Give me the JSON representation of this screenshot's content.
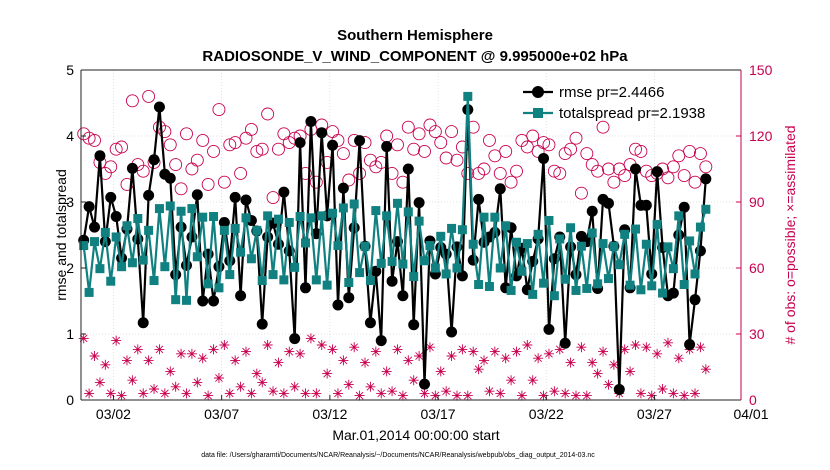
{
  "chart_data": {
    "type": "line",
    "title": "Southern Hemisphere",
    "subtitle": "RADIOSONDE_V_WIND_COMPONENT @ 9.995000e+02 hPa",
    "xlabel": "Mar.01,2014 00:00:00 start",
    "ylabel": "rmse and totalspread",
    "ylabel_right": "# of obs: o=possible; ×=assimilated",
    "footnote": "data file: /Users/gharamti/Documents/NCAR/Reanalysis/~/Documents/NCAR/Reanalysis/webpub/obs_diag_output_2014-03.nc",
    "xlim": [
      0.5,
      31.0
    ],
    "ylim": [
      0,
      5
    ],
    "ylim_right": [
      0,
      150
    ],
    "x_ticks": [
      {
        "value": 2,
        "label": "03/02"
      },
      {
        "value": 7,
        "label": "03/07"
      },
      {
        "value": 12,
        "label": "03/12"
      },
      {
        "value": 17,
        "label": "03/17"
      },
      {
        "value": 22,
        "label": "03/22"
      },
      {
        "value": 27,
        "label": "03/27"
      },
      {
        "value": 32,
        "label": "04/01"
      }
    ],
    "y_ticks": [
      "0",
      "1",
      "2",
      "3",
      "4",
      "5"
    ],
    "y_ticks_right": [
      "0",
      "30",
      "60",
      "90",
      "120",
      "150"
    ],
    "x_start": 0.625,
    "x_step": 0.25,
    "series": [
      {
        "name": "rmse",
        "label": "rmse pr=2.4466",
        "color": "#000000",
        "marker": "circle",
        "values": [
          2.42,
          2.93,
          2.62,
          3.7,
          2.4,
          3.07,
          2.78,
          2.15,
          2.59,
          3.51,
          2.44,
          1.17,
          3.1,
          3.64,
          4.44,
          3.42,
          3.36,
          1.9,
          2.62,
          2.04,
          2.47,
          3.11,
          1.5,
          2.21,
          1.5,
          2.02,
          2.69,
          2.11,
          3.07,
          1.58,
          3.03,
          2.72,
          2.56,
          1.15,
          2.47,
          2.68,
          2.36,
          3.15,
          2.26,
          0.93,
          3.9,
          1.7,
          4.22,
          2.52,
          4.05,
          2.79,
          3.86,
          1.44,
          3.21,
          1.55,
          2.61,
          3.93,
          2.33,
          1.17,
          1.95,
          0.9,
          3.84,
          1.8,
          2.4,
          1.58,
          3.5,
          1.14,
          2.99,
          0.24,
          2.41,
          1.91,
          2.31,
          2.21,
          1.03,
          2.32,
          1.88,
          4.4,
          2.12,
          3.04,
          2.39,
          2.47,
          2.54,
          3.2,
          1.7,
          2.61,
          1.88,
          2.3,
          1.67,
          2.1,
          2.44,
          3.66,
          1.07,
          2.14,
          2.47,
          0.86,
          2.32,
          1.9,
          2.48,
          2.4,
          2.86,
          1.69,
          3.04,
          2.98,
          2.33,
          0.16,
          2.58,
          1.7,
          3.5,
          2.95,
          2.95,
          1.91,
          3.46,
          2.31,
          1.58,
          1.62,
          2.5,
          2.92,
          0.84,
          1.52,
          2.26,
          3.35
        ]
      },
      {
        "name": "totalspread",
        "label": "totalspread pr=2.1938",
        "color": "#108080",
        "marker": "square",
        "values": [
          2.34,
          1.63,
          2.4,
          1.99,
          2.54,
          1.8,
          2.47,
          2.02,
          2.64,
          2.08,
          2.75,
          2.12,
          2.57,
          1.81,
          2.9,
          2.02,
          2.94,
          1.52,
          2.86,
          1.51,
          2.9,
          2.17,
          2.77,
          1.76,
          2.78,
          1.7,
          2.57,
          1.9,
          2.6,
          2.24,
          2.76,
          2.14,
          2.57,
          1.81,
          2.79,
          1.9,
          2.74,
          1.82,
          2.69,
          2.01,
          2.78,
          2.38,
          2.76,
          1.82,
          2.79,
          1.74,
          2.83,
          2.34,
          2.91,
          1.78,
          2.97,
          1.93,
          2.33,
          1.81,
          2.87,
          2.07,
          2.79,
          2.1,
          2.98,
          2.06,
          2.85,
          1.87,
          2.71,
          2.11,
          2.34,
          2.0,
          2.48,
          1.91,
          2.6,
          2.0,
          2.58,
          4.6,
          2.36,
          1.75,
          2.77,
          1.72,
          2.77,
          2.0,
          2.64,
          1.66,
          2.39,
          1.95,
          2.37,
          1.6,
          2.51,
          1.77,
          2.72,
          1.58,
          2.44,
          1.83,
          2.61,
          1.66,
          2.33,
          1.69,
          2.53,
          1.76,
          2.37,
          1.84,
          2.33,
          2.05,
          2.51,
          1.74,
          2.59,
          1.67,
          2.36,
          1.73,
          2.66,
          1.62,
          2.32,
          1.99,
          2.79,
          1.75,
          2.41,
          1.91,
          2.62,
          2.89
        ]
      },
      {
        "name": "possible",
        "label": "possible",
        "color": "#c8004f",
        "marker": "open-circle",
        "axis": "right",
        "values": [
          121,
          119,
          118,
          108,
          103,
          106,
          114,
          115,
          98,
          136,
          107,
          104,
          138,
          108,
          124,
          122,
          116,
          107,
          96,
          121,
          105,
          109,
          118,
          98,
          113,
          132,
          99,
          116,
          117,
          103,
          119,
          123,
          113,
          114,
          130,
          92,
          114,
          121,
          117,
          119,
          120,
          103,
          123,
          99,
          125,
          108,
          122,
          118,
          112,
          100,
          118,
          103,
          117,
          109,
          106,
          108,
          120,
          103,
          116,
          99,
          124,
          114,
          121,
          113,
          125,
          122,
          117,
          110,
          122,
          109,
          115,
          103,
          124,
          103,
          105,
          118,
          111,
          103,
          113,
          99,
          104,
          118,
          115,
          120,
          113,
          117,
          116,
          104,
          103,
          112,
          114,
          119,
          94,
          112,
          107,
          104,
          124,
          105,
          99,
          105,
          102,
          107,
          114,
          113,
          104,
          102,
          103,
          105,
          101,
          106,
          111,
          102,
          113,
          99,
          112,
          106
        ]
      },
      {
        "name": "assimilated",
        "label": "assimilated",
        "color": "#c8004f",
        "marker": "asterisk",
        "axis": "right",
        "values": [
          28,
          3,
          20,
          8,
          16,
          3,
          27,
          2,
          18,
          9,
          23,
          3,
          18,
          5,
          23,
          3,
          13,
          6,
          21,
          3,
          21,
          8,
          19,
          2,
          23,
          10,
          25,
          3,
          18,
          6,
          22,
          3,
          12,
          8,
          25,
          4,
          17,
          3,
          22,
          6,
          21,
          3,
          28,
          3,
          25,
          12,
          23,
          3,
          18,
          7,
          24,
          2,
          17,
          6,
          22,
          3,
          13,
          4,
          23,
          2,
          18,
          9,
          20,
          3,
          24,
          2,
          13,
          4,
          20,
          2,
          23,
          2,
          22,
          14,
          18,
          4,
          22,
          3,
          19,
          9,
          22,
          2,
          25,
          9,
          19,
          2,
          21,
          4,
          23,
          3,
          17,
          2,
          24,
          2,
          17,
          12,
          22,
          7,
          16,
          3,
          23,
          13,
          25,
          3,
          24,
          2,
          21,
          5,
          26,
          3,
          19,
          2,
          23,
          3,
          24,
          14
        ]
      }
    ]
  }
}
